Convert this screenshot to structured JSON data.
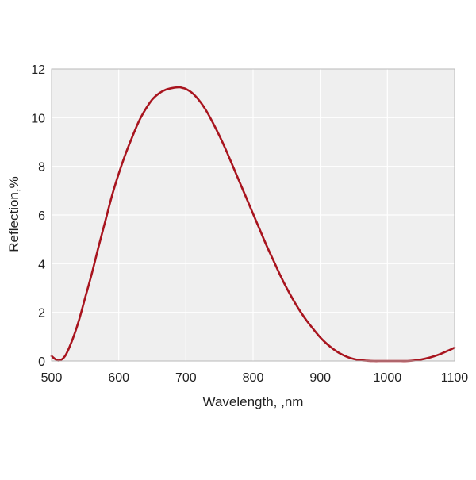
{
  "chart_data": {
    "type": "line",
    "title": "",
    "xlabel": "Wavelength, ,nm",
    "ylabel": "Reflection,%",
    "xlim": [
      500,
      1100
    ],
    "ylim": [
      0,
      12
    ],
    "xticks": [
      500,
      600,
      700,
      800,
      900,
      1000,
      1100
    ],
    "yticks": [
      0,
      2,
      4,
      6,
      8,
      10,
      12
    ],
    "grid": true,
    "colors": {
      "plot_background": "#efefef",
      "grid": "#ffffff",
      "frame": "#b9b9b9",
      "line": "#a8141e"
    },
    "series": [
      {
        "x": [
          500,
          510,
          520,
          530,
          540,
          550,
          560,
          570,
          580,
          590,
          600,
          610,
          620,
          630,
          640,
          650,
          660,
          670,
          680,
          690,
          695,
          700,
          710,
          720,
          730,
          740,
          750,
          760,
          770,
          780,
          790,
          800,
          810,
          820,
          830,
          840,
          850,
          860,
          870,
          880,
          890,
          900,
          910,
          920,
          930,
          940,
          950,
          960,
          970,
          980,
          990,
          1000,
          1010,
          1020,
          1030,
          1040,
          1050,
          1060,
          1070,
          1080,
          1090,
          1100
        ],
        "values": [
          0.2,
          0.02,
          0.2,
          0.8,
          1.6,
          2.6,
          3.6,
          4.7,
          5.75,
          6.8,
          7.7,
          8.5,
          9.2,
          9.85,
          10.35,
          10.75,
          11.0,
          11.15,
          11.22,
          11.25,
          11.22,
          11.18,
          11.0,
          10.7,
          10.3,
          9.8,
          9.25,
          8.65,
          8.0,
          7.35,
          6.7,
          6.05,
          5.4,
          4.75,
          4.15,
          3.55,
          3.0,
          2.5,
          2.05,
          1.65,
          1.3,
          0.97,
          0.7,
          0.48,
          0.3,
          0.17,
          0.08,
          0.03,
          0.01,
          0.0,
          0.0,
          0.0,
          0.0,
          0.0,
          0.0,
          0.02,
          0.06,
          0.12,
          0.2,
          0.3,
          0.42,
          0.55
        ]
      }
    ]
  }
}
